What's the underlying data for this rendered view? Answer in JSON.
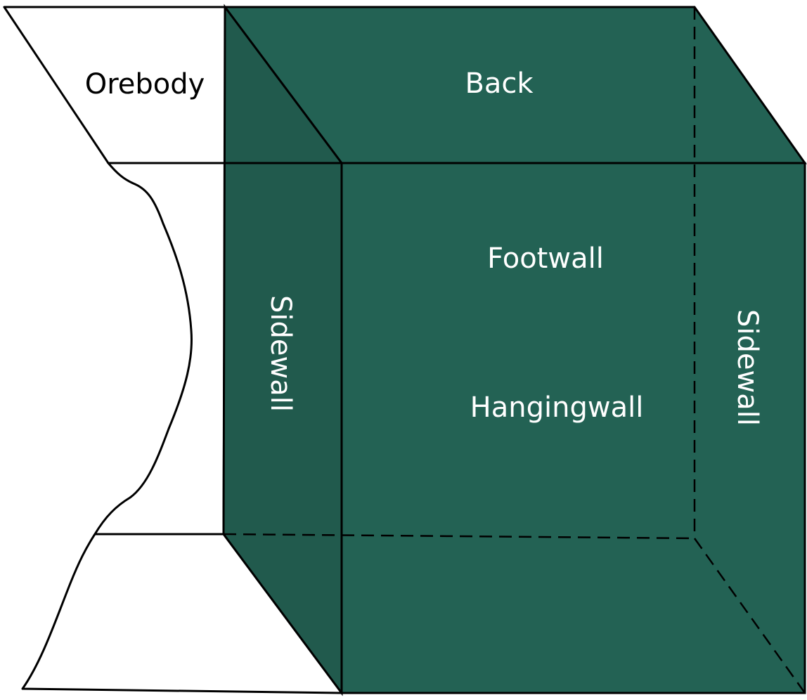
{
  "labels": {
    "orebody": "Orebody",
    "back": "Back",
    "footwall": "Footwall",
    "hangingwall": "Hangingwall",
    "sidewall_left": "Sidewall",
    "sidewall_right": "Sidewall"
  },
  "colors": {
    "stope_fill": "#236254",
    "stope_fill_dark": "#215a4d",
    "outline": "#000000",
    "label_on_dark": "#ffffff",
    "label_on_light": "#000000",
    "background": "#ffffff"
  }
}
